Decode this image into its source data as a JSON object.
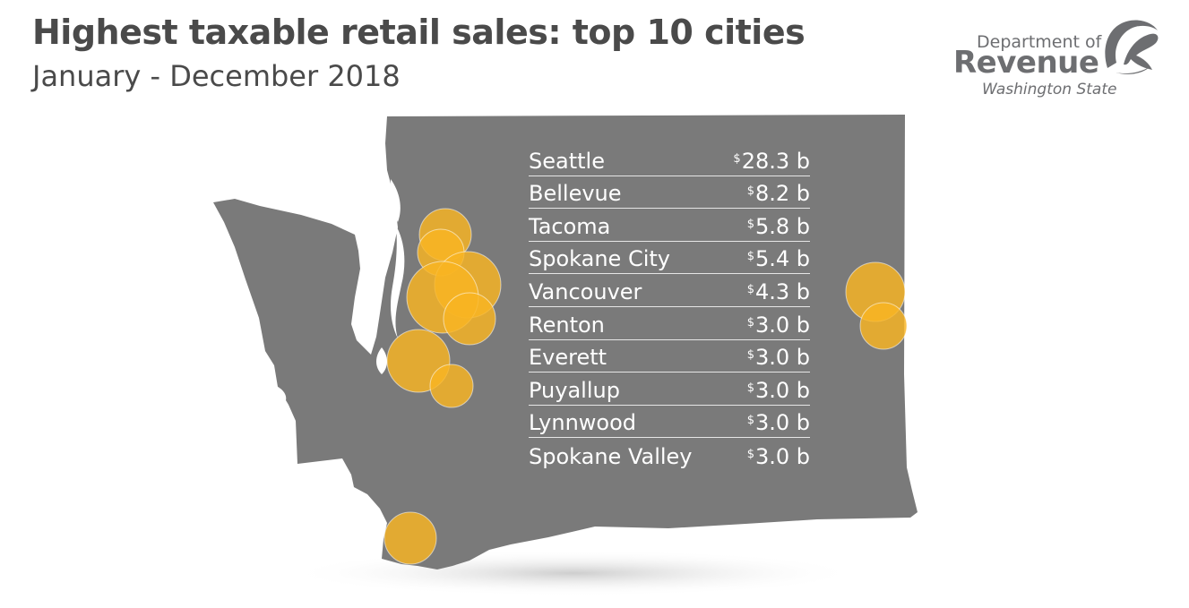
{
  "title": "Highest taxable retail sales: top 10 cities",
  "subtitle": "January - December 2018",
  "logo": {
    "line1": "Department of",
    "line2": "Revenue",
    "line3": "Washington State"
  },
  "colors": {
    "map_fill": "#7a7a7a",
    "bubble_fill": "#f9b422",
    "text_dark": "#4a4a4a",
    "logo_gray": "#6d6e71"
  },
  "currency_symbol": "$",
  "cities": [
    {
      "name": "Seattle",
      "amount": "28.3 b",
      "value_billion": 28.3
    },
    {
      "name": "Bellevue",
      "amount": "8.2 b",
      "value_billion": 8.2
    },
    {
      "name": "Tacoma",
      "amount": "5.8 b",
      "value_billion": 5.8
    },
    {
      "name": "Spokane City",
      "amount": "5.4 b",
      "value_billion": 5.4
    },
    {
      "name": "Vancouver",
      "amount": "4.3 b",
      "value_billion": 4.3
    },
    {
      "name": "Renton",
      "amount": "3.0 b",
      "value_billion": 3.0
    },
    {
      "name": "Everett",
      "amount": "3.0 b",
      "value_billion": 3.0
    },
    {
      "name": "Puyallup",
      "amount": "3.0 b",
      "value_billion": 3.0
    },
    {
      "name": "Lynnwood",
      "amount": "3.0 b",
      "value_billion": 3.0
    },
    {
      "name": "Spokane Valley",
      "amount": "3.0 b",
      "value_billion": 3.0
    }
  ]
}
